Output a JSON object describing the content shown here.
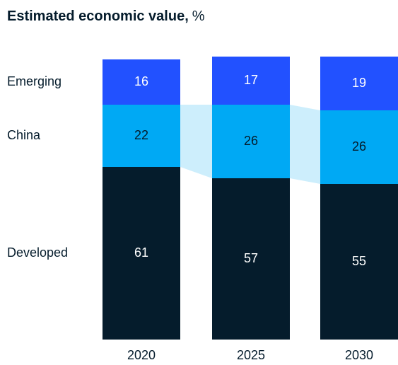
{
  "chart_data": {
    "type": "stacked_bar",
    "title": "Estimated economic value,",
    "unit": "%",
    "categories": [
      "2020",
      "2025",
      "2030"
    ],
    "series": [
      {
        "name": "Developed",
        "color": "#051c2c",
        "label_color": "#ffffff",
        "values": [
          61,
          57,
          55
        ]
      },
      {
        "name": "China",
        "color": "#00a9f4",
        "label_color": "#051c2c",
        "values": [
          22,
          26,
          26
        ]
      },
      {
        "name": "Emerging",
        "color": "#2251ff",
        "label_color": "#ffffff",
        "values": [
          16,
          17,
          19
        ]
      }
    ],
    "connector_series": "China",
    "connector_color": "#cdeefc"
  }
}
